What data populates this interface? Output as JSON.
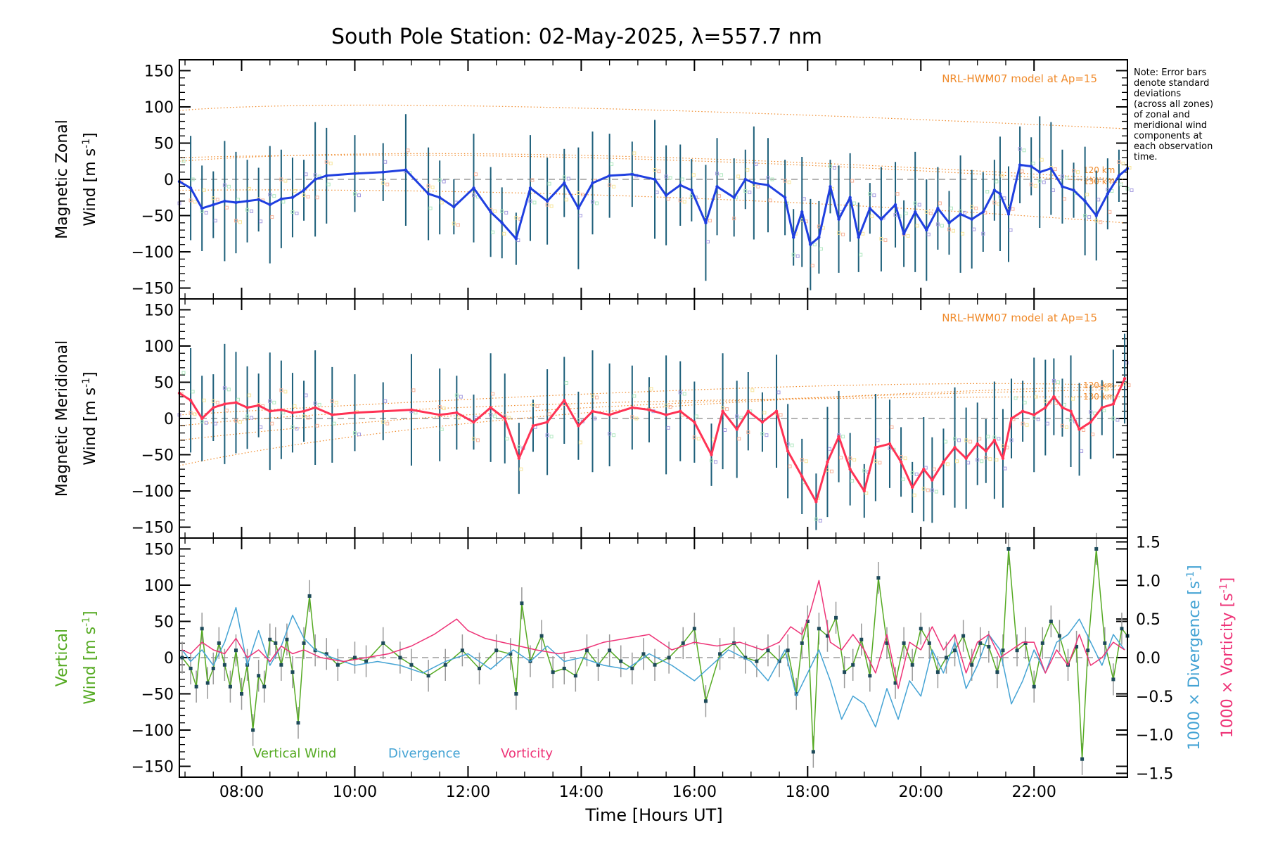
{
  "chart_data": {
    "type": "line",
    "title": "South Pole Station: 02-May-2025, λ=557.7 nm",
    "xlabel": "Time [Hours UT]",
    "xlim": [
      6.9,
      23.65
    ],
    "x_ticks": [
      8,
      10,
      12,
      14,
      16,
      18,
      20,
      22
    ],
    "x_tick_labels": [
      "08:00",
      "10:00",
      "12:00",
      "14:00",
      "16:00",
      "18:00",
      "20:00",
      "22:00"
    ],
    "note_lines": [
      "Note: Error bars",
      "denote standard",
      "deviations",
      "(across all zones)",
      "of zonal and",
      "meridional wind",
      "components at",
      "each observation",
      "time."
    ],
    "panels": [
      {
        "id": "zonal",
        "ylabel_line1": "Magnetic Zonal",
        "ylabel_line2": "Wind [m s",
        "ylabel_sup": "-1",
        "ylabel_close": "]",
        "ylim": [
          -165,
          165
        ],
        "yticks": [
          -150,
          -100,
          -50,
          0,
          50,
          100,
          150
        ],
        "model_label": "NRL-HWM07 model at Ap=15",
        "alt_labels": [
          "120 km",
          "130 km"
        ],
        "series_name": "Magnetic Zonal Wind",
        "color": "#1f3fe0",
        "x": [
          6.9,
          7.1,
          7.3,
          7.5,
          7.7,
          7.9,
          8.1,
          8.3,
          8.5,
          8.7,
          8.9,
          9.1,
          9.3,
          9.5,
          10.0,
          10.5,
          10.9,
          11.3,
          11.5,
          11.75,
          12.1,
          12.4,
          12.6,
          12.85,
          13.1,
          13.4,
          13.7,
          13.95,
          14.2,
          14.5,
          14.9,
          15.3,
          15.5,
          15.75,
          15.95,
          16.2,
          16.4,
          16.7,
          16.9,
          17.05,
          17.3,
          17.6,
          17.75,
          17.9,
          18.05,
          18.2,
          18.4,
          18.55,
          18.75,
          18.9,
          19.1,
          19.3,
          19.55,
          19.7,
          19.9,
          20.1,
          20.3,
          20.5,
          20.7,
          20.9,
          21.1,
          21.3,
          21.4,
          21.55,
          21.75,
          21.95,
          22.1,
          22.3,
          22.5,
          22.7,
          22.9,
          23.1,
          23.3,
          23.5,
          23.65
        ],
        "values": [
          -3,
          -12,
          -40,
          -35,
          -30,
          -32,
          -30,
          -28,
          -35,
          -27,
          -25,
          -15,
          0,
          5,
          8,
          10,
          13,
          -20,
          -25,
          -38,
          -12,
          -45,
          -60,
          -82,
          -12,
          -30,
          -5,
          -40,
          -5,
          5,
          7,
          0,
          -22,
          -8,
          -15,
          -60,
          -10,
          -25,
          0,
          -5,
          -8,
          -25,
          -80,
          -45,
          -90,
          -80,
          -10,
          -55,
          -25,
          -80,
          -40,
          -55,
          -35,
          -75,
          -45,
          -70,
          -40,
          -60,
          -48,
          -55,
          -45,
          -15,
          -20,
          -48,
          20,
          18,
          10,
          15,
          -10,
          -15,
          -30,
          -50,
          -20,
          5,
          15
        ]
      },
      {
        "id": "meridional",
        "ylabel_line1": "Magnetic Meridional",
        "ylabel_line2": "Wind [m s",
        "ylabel_sup": "-1",
        "ylabel_close": "]",
        "ylim": [
          -165,
          165
        ],
        "yticks": [
          -150,
          -100,
          -50,
          0,
          50,
          100,
          150
        ],
        "model_label": "NRL-HWM07 model at Ap=15",
        "alt_labels": [
          "120 km",
          "130 km"
        ],
        "series_name": "Magnetic Meridional Wind",
        "color": "#ff3355",
        "x": [
          6.9,
          7.1,
          7.3,
          7.5,
          7.7,
          7.9,
          8.1,
          8.3,
          8.5,
          8.7,
          8.9,
          9.1,
          9.3,
          9.6,
          10.0,
          10.5,
          11.0,
          11.5,
          11.8,
          12.1,
          12.4,
          12.65,
          12.9,
          13.15,
          13.4,
          13.7,
          13.95,
          14.2,
          14.5,
          14.9,
          15.2,
          15.5,
          15.75,
          16.0,
          16.3,
          16.5,
          16.75,
          16.95,
          17.2,
          17.45,
          17.65,
          17.9,
          18.15,
          18.35,
          18.55,
          18.75,
          19.0,
          19.2,
          19.45,
          19.65,
          19.85,
          20.05,
          20.2,
          20.4,
          20.6,
          20.8,
          21.0,
          21.15,
          21.3,
          21.45,
          21.6,
          21.8,
          22.0,
          22.2,
          22.35,
          22.5,
          22.65,
          22.8,
          23.0,
          23.2,
          23.4,
          23.6
        ],
        "values": [
          35,
          25,
          0,
          15,
          20,
          22,
          15,
          18,
          10,
          12,
          8,
          10,
          15,
          5,
          8,
          10,
          12,
          5,
          8,
          -5,
          15,
          0,
          -55,
          -10,
          -5,
          25,
          -10,
          10,
          5,
          15,
          12,
          5,
          10,
          -5,
          -50,
          10,
          -15,
          10,
          -5,
          10,
          -45,
          -80,
          -115,
          -60,
          -25,
          -70,
          -100,
          -40,
          -35,
          -60,
          -95,
          -70,
          -85,
          -60,
          -40,
          -55,
          -35,
          -45,
          -30,
          -55,
          0,
          10,
          5,
          15,
          30,
          15,
          10,
          -15,
          -5,
          15,
          20,
          55
        ]
      },
      {
        "id": "vertical",
        "ylabel_line1": "Vertical",
        "ylabel_line2": "Wind [m s",
        "ylabel_sup": "-1",
        "ylabel_close": "]",
        "ylim": [
          -165,
          165
        ],
        "yticks": [
          -150,
          -100,
          -50,
          0,
          50,
          100,
          150
        ],
        "right_ylim": [
          -1.55,
          1.55
        ],
        "right_yticks": [
          -1.5,
          -1.0,
          -0.5,
          0.0,
          0.5,
          1.0,
          1.5
        ],
        "right_ytick_labels": [
          "−1.5",
          "−1.0",
          "−0.5",
          "0.0",
          "0.5",
          "1.0",
          "1.5"
        ],
        "right_label_div": "1000 × Divergence [s",
        "right_label_vort": "1000 × Vorticity [s",
        "right_label_sup": "-1",
        "right_label_close": "]",
        "legend": [
          "Vertical Wind",
          "Divergence",
          "Vorticity"
        ],
        "series": [
          {
            "name": "Vertical Wind",
            "axis": "left",
            "color": "#55aa22",
            "x": [
              6.95,
              7.1,
              7.2,
              7.3,
              7.4,
              7.5,
              7.6,
              7.7,
              7.8,
              7.9,
              8.0,
              8.1,
              8.2,
              8.3,
              8.4,
              8.5,
              8.6,
              8.7,
              8.8,
              8.9,
              9.0,
              9.1,
              9.2,
              9.3,
              9.5,
              9.7,
              10.0,
              10.2,
              10.5,
              10.8,
              11.0,
              11.3,
              11.6,
              11.9,
              12.2,
              12.5,
              12.75,
              12.85,
              12.95,
              13.1,
              13.3,
              13.5,
              13.7,
              13.9,
              14.1,
              14.3,
              14.5,
              14.7,
              14.9,
              15.1,
              15.3,
              15.55,
              15.8,
              16.0,
              16.2,
              16.45,
              16.7,
              16.9,
              17.1,
              17.3,
              17.5,
              17.65,
              17.8,
              17.9,
              18.0,
              18.1,
              18.2,
              18.35,
              18.5,
              18.65,
              18.8,
              18.95,
              19.1,
              19.25,
              19.4,
              19.55,
              19.7,
              19.85,
              20.0,
              20.15,
              20.3,
              20.45,
              20.6,
              20.75,
              20.9,
              21.05,
              21.2,
              21.35,
              21.45,
              21.55,
              21.7,
              21.85,
              22.0,
              22.15,
              22.3,
              22.45,
              22.6,
              22.75,
              22.85,
              22.95,
              23.1,
              23.25,
              23.4,
              23.55,
              23.65
            ],
            "values": [
              0,
              -15,
              -40,
              40,
              -35,
              -15,
              20,
              -10,
              -40,
              10,
              -50,
              -10,
              -100,
              -25,
              -40,
              25,
              20,
              -10,
              25,
              -20,
              -90,
              20,
              85,
              10,
              5,
              -10,
              0,
              -5,
              20,
              0,
              -10,
              -25,
              -10,
              10,
              -15,
              10,
              5,
              -50,
              75,
              -5,
              30,
              -20,
              -15,
              -25,
              10,
              -10,
              10,
              -5,
              -15,
              5,
              -10,
              0,
              20,
              40,
              -60,
              5,
              20,
              0,
              -5,
              10,
              -5,
              10,
              -50,
              20,
              50,
              -130,
              40,
              30,
              55,
              -20,
              -10,
              25,
              -25,
              110,
              20,
              -35,
              20,
              -10,
              40,
              20,
              -20,
              0,
              10,
              30,
              -10,
              20,
              15,
              -20,
              10,
              150,
              10,
              20,
              -40,
              20,
              50,
              30,
              -10,
              15,
              -140,
              10,
              150,
              20,
              -30,
              40,
              30
            ]
          },
          {
            "name": "Divergence",
            "axis": "right",
            "color": "#44a3d4",
            "x": [
              6.95,
              7.1,
              7.3,
              7.5,
              7.7,
              7.9,
              8.1,
              8.3,
              8.5,
              8.7,
              8.9,
              9.1,
              9.3,
              9.6,
              10.0,
              10.4,
              10.8,
              11.2,
              11.6,
              12.0,
              12.4,
              12.8,
              13.1,
              13.4,
              13.7,
              14.0,
              14.4,
              14.8,
              15.2,
              15.6,
              16.0,
              16.3,
              16.6,
              17.0,
              17.3,
              17.6,
              17.8,
              18.0,
              18.2,
              18.4,
              18.6,
              18.8,
              19.0,
              19.2,
              19.4,
              19.6,
              19.8,
              20.0,
              20.2,
              20.4,
              20.6,
              20.8,
              21.0,
              21.2,
              21.4,
              21.6,
              21.8,
              22.0,
              22.2,
              22.4,
              22.6,
              22.8,
              23.0,
              23.2,
              23.4,
              23.6
            ],
            "values": [
              0.1,
              -0.05,
              0.1,
              -0.1,
              0.2,
              0.65,
              -0.1,
              0.35,
              -0.1,
              0.15,
              0.55,
              0.25,
              0.1,
              0.0,
              -0.1,
              -0.05,
              -0.1,
              -0.2,
              -0.05,
              0.05,
              -0.15,
              0.1,
              -0.05,
              0.15,
              -0.05,
              0.0,
              -0.1,
              -0.15,
              0.05,
              -0.1,
              -0.3,
              -0.1,
              0.1,
              -0.05,
              -0.3,
              0.1,
              -0.5,
              -0.2,
              0.1,
              -0.3,
              -0.8,
              -0.5,
              -0.6,
              -0.9,
              -0.4,
              -0.8,
              -0.3,
              -0.5,
              0.1,
              -0.2,
              0.2,
              -0.4,
              -0.1,
              0.3,
              0.1,
              -0.6,
              -0.3,
              0.1,
              -0.2,
              0.2,
              0.3,
              0.5,
              0.2,
              -0.1,
              0.3,
              0.1
            ]
          },
          {
            "name": "Vorticity",
            "axis": "right",
            "color": "#ee3377",
            "x": [
              6.95,
              7.1,
              7.3,
              7.5,
              7.7,
              7.9,
              8.1,
              8.3,
              8.5,
              8.7,
              8.9,
              9.1,
              9.4,
              9.8,
              10.2,
              10.6,
              11.0,
              11.4,
              11.8,
              12.0,
              12.3,
              12.6,
              12.9,
              13.2,
              13.6,
              14.0,
              14.4,
              14.8,
              15.2,
              15.6,
              16.0,
              16.4,
              16.8,
              17.2,
              17.5,
              17.7,
              17.9,
              18.05,
              18.2,
              18.4,
              18.6,
              18.8,
              19.0,
              19.2,
              19.4,
              19.6,
              19.8,
              20.0,
              20.2,
              20.4,
              20.6,
              20.8,
              21.0,
              21.2,
              21.4,
              21.6,
              21.8,
              22.0,
              22.2,
              22.4,
              22.6,
              22.8,
              23.0,
              23.2,
              23.4,
              23.6
            ],
            "values": [
              0.1,
              0.05,
              0.2,
              0.1,
              0.05,
              0.25,
              0.0,
              0.1,
              -0.05,
              0.15,
              0.05,
              0.1,
              0.0,
              -0.05,
              0.0,
              0.05,
              0.15,
              0.3,
              0.5,
              0.35,
              0.25,
              0.2,
              0.15,
              0.1,
              0.05,
              0.1,
              0.2,
              0.25,
              0.3,
              0.1,
              0.2,
              0.15,
              0.2,
              0.1,
              0.2,
              0.4,
              0.3,
              0.6,
              1.0,
              0.2,
              0.1,
              0.3,
              0.1,
              -0.2,
              0.3,
              -0.4,
              0.2,
              0.1,
              0.4,
              0.1,
              0.3,
              -0.2,
              0.2,
              0.3,
              0.0,
              0.1,
              0.2,
              0.2,
              -0.2,
              0.1,
              -0.1,
              0.3,
              -0.1,
              0.0,
              0.2,
              0.1
            ]
          }
        ]
      }
    ]
  }
}
